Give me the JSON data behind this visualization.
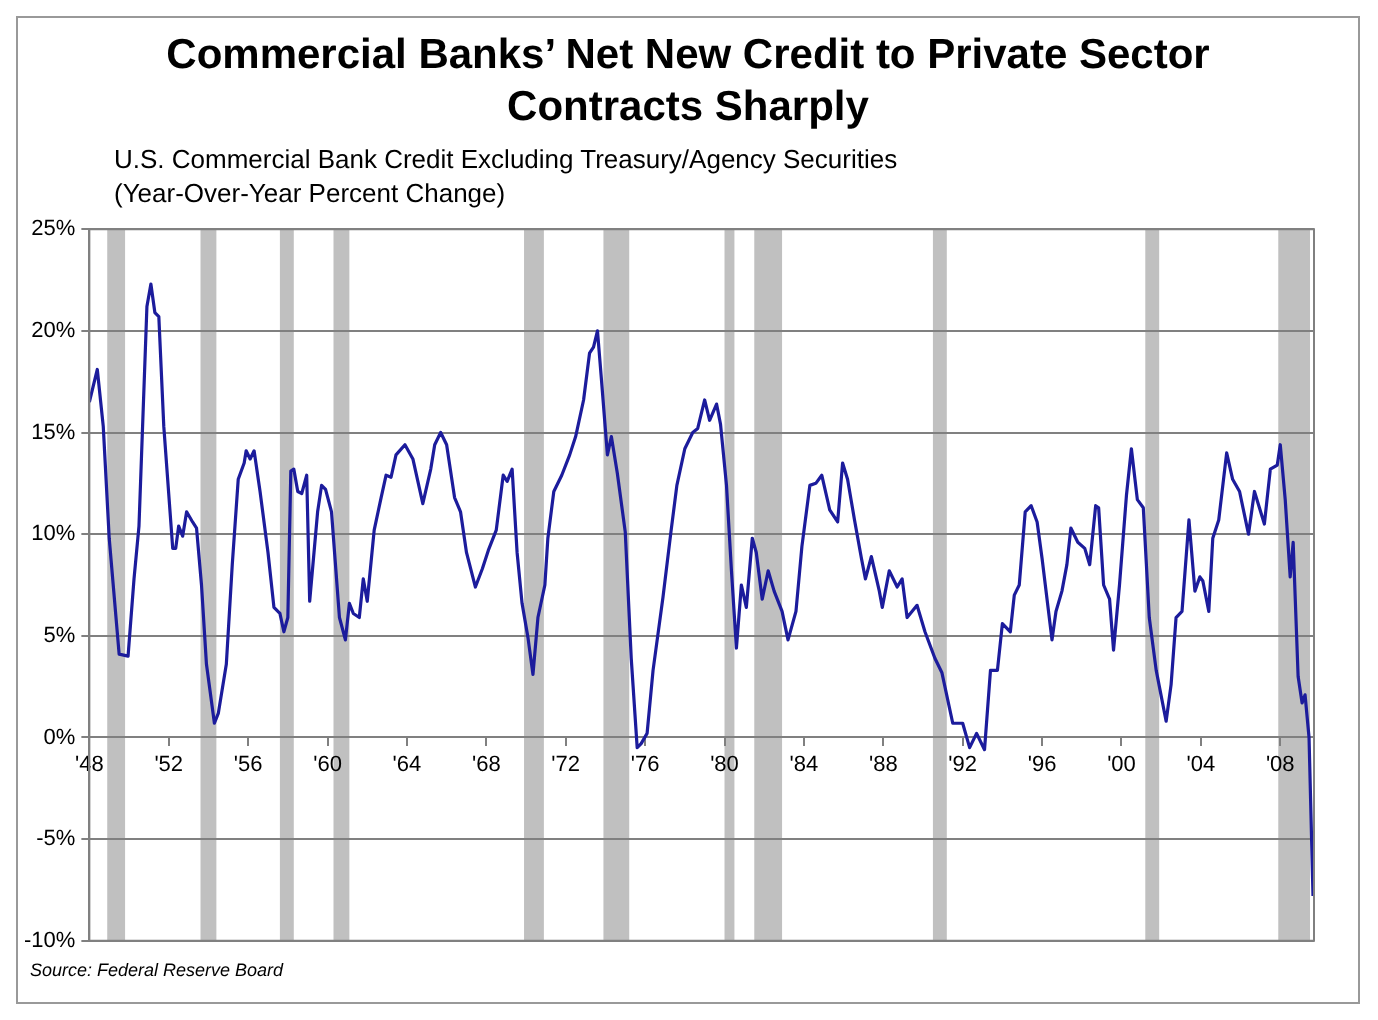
{
  "chart_data": {
    "type": "line",
    "title": "Commercial Banks’ Net New Credit to Private Sector\nContracts Sharply",
    "subtitle": "U.S. Commercial Bank Credit Excluding Treasury/Agency Securities\n(Year-Over-Year Percent Change)",
    "annotations": [
      "Source: Federal Reserve Board"
    ],
    "xlim": [
      1948,
      2009.7
    ],
    "ylim": [
      -10,
      25
    ],
    "xticks": [
      {
        "value": 1948,
        "label": "'48"
      },
      {
        "value": 1952,
        "label": "'52"
      },
      {
        "value": 1956,
        "label": "'56"
      },
      {
        "value": 1960,
        "label": "'60"
      },
      {
        "value": 1964,
        "label": "'64"
      },
      {
        "value": 1968,
        "label": "'68"
      },
      {
        "value": 1972,
        "label": "'72"
      },
      {
        "value": 1976,
        "label": "'76"
      },
      {
        "value": 1980,
        "label": "'80"
      },
      {
        "value": 1984,
        "label": "'84"
      },
      {
        "value": 1988,
        "label": "'88"
      },
      {
        "value": 1992,
        "label": "'92"
      },
      {
        "value": 1996,
        "label": "'96"
      },
      {
        "value": 2000,
        "label": "'00"
      },
      {
        "value": 2004,
        "label": "'04"
      },
      {
        "value": 2008,
        "label": "'08"
      }
    ],
    "yticks": [
      {
        "value": -10,
        "label": "-10%"
      },
      {
        "value": -5,
        "label": "-5%"
      },
      {
        "value": 0,
        "label": "0%"
      },
      {
        "value": 5,
        "label": "5%"
      },
      {
        "value": 10,
        "label": "10%"
      },
      {
        "value": 15,
        "label": "15%"
      },
      {
        "value": 20,
        "label": "20%"
      },
      {
        "value": 25,
        "label": "25%"
      }
    ],
    "grid": "y",
    "bands": [
      {
        "axis": "x",
        "from": 1948.9,
        "to": 1949.8,
        "color": "#c0c0c0"
      },
      {
        "axis": "x",
        "from": 1953.6,
        "to": 1954.4,
        "color": "#c0c0c0"
      },
      {
        "axis": "x",
        "from": 1957.6,
        "to": 1958.3,
        "color": "#c0c0c0"
      },
      {
        "axis": "x",
        "from": 1960.3,
        "to": 1961.1,
        "color": "#c0c0c0"
      },
      {
        "axis": "x",
        "from": 1969.9,
        "to": 1970.9,
        "color": "#c0c0c0"
      },
      {
        "axis": "x",
        "from": 1973.9,
        "to": 1975.2,
        "color": "#c0c0c0"
      },
      {
        "axis": "x",
        "from": 1980.0,
        "to": 1980.5,
        "color": "#c0c0c0"
      },
      {
        "axis": "x",
        "from": 1981.5,
        "to": 1982.9,
        "color": "#c0c0c0"
      },
      {
        "axis": "x",
        "from": 1990.5,
        "to": 1991.2,
        "color": "#c0c0c0"
      },
      {
        "axis": "x",
        "from": 2001.2,
        "to": 2001.9,
        "color": "#c0c0c0"
      },
      {
        "axis": "x",
        "from": 2007.9,
        "to": 2009.5,
        "color": "#c0c0c0"
      }
    ],
    "series": [
      {
        "color": "#1c1c9c",
        "x": [
          1948.0,
          1948.4,
          1948.7,
          1949.0,
          1949.5,
          1949.95,
          1950.25,
          1950.5,
          1950.9,
          1951.1,
          1951.3,
          1951.5,
          1951.75,
          1952.2,
          1952.35,
          1952.5,
          1952.7,
          1952.9,
          1953.2,
          1953.4,
          1953.65,
          1953.9,
          1954.3,
          1954.5,
          1954.9,
          1955.2,
          1955.5,
          1955.8,
          1955.9,
          1956.1,
          1956.3,
          1956.6,
          1957.0,
          1957.3,
          1957.6,
          1957.8,
          1958.0,
          1958.15,
          1958.3,
          1958.5,
          1958.7,
          1958.95,
          1959.1,
          1959.5,
          1959.7,
          1959.9,
          1960.2,
          1960.6,
          1960.9,
          1961.1,
          1961.3,
          1961.6,
          1961.8,
          1962.0,
          1962.35,
          1962.7,
          1962.95,
          1963.2,
          1963.45,
          1963.9,
          1964.3,
          1964.8,
          1965.2,
          1965.4,
          1965.7,
          1966.0,
          1966.4,
          1966.7,
          1967.0,
          1967.45,
          1967.8,
          1968.1,
          1968.5,
          1968.85,
          1969.05,
          1969.3,
          1969.55,
          1969.8,
          1970.1,
          1970.35,
          1970.6,
          1970.95,
          1971.1,
          1971.4,
          1971.8,
          1972.2,
          1972.5,
          1972.9,
          1973.2,
          1973.4,
          1973.6,
          1973.8,
          1974.1,
          1974.3,
          1974.6,
          1975.0,
          1975.3,
          1975.6,
          1975.8,
          1976.1,
          1976.4,
          1976.9,
          1977.3,
          1977.6,
          1978.0,
          1978.4,
          1978.65,
          1979.0,
          1979.25,
          1979.6,
          1979.8,
          1980.1,
          1980.35,
          1980.6,
          1980.85,
          1981.1,
          1981.4,
          1981.6,
          1981.9,
          1982.2,
          1982.5,
          1982.9,
          1983.2,
          1983.6,
          1983.9,
          1984.3,
          1984.6,
          1984.9,
          1985.3,
          1985.7,
          1985.95,
          1986.2,
          1986.55,
          1986.9,
          1987.1,
          1987.4,
          1987.8,
          1987.95,
          1988.3,
          1988.7,
          1988.95,
          1989.2,
          1989.7,
          1990.1,
          1990.6,
          1990.95,
          1991.5,
          1992.0,
          1992.35,
          1992.7,
          1993.1,
          1993.4,
          1993.75,
          1994.0,
          1994.4,
          1994.6,
          1994.85,
          1995.15,
          1995.45,
          1995.75,
          1996.0,
          1996.5,
          1996.7,
          1997.0,
          1997.25,
          1997.45,
          1997.8,
          1998.15,
          1998.4,
          1998.7,
          1998.85,
          1999.1,
          1999.4,
          1999.6,
          1999.9,
          2000.25,
          2000.5,
          2000.8,
          2001.1,
          2001.4,
          2001.75,
          2002.25,
          2002.5,
          2002.75,
          2003.05,
          2003.4,
          2003.7,
          2003.95,
          2004.1,
          2004.4,
          2004.6,
          2004.9,
          2005.3,
          2005.6,
          2005.95,
          2006.4,
          2006.7,
          2007.2,
          2007.5,
          2007.85,
          2008.0,
          2008.25,
          2008.5,
          2008.65,
          2008.9,
          2009.1,
          2009.25,
          2009.45,
          2009.65
        ],
        "values": [
          16.5,
          18.1,
          15.3,
          9.8,
          4.1,
          4.0,
          7.8,
          10.4,
          21.2,
          22.3,
          20.9,
          20.7,
          15.3,
          9.3,
          9.3,
          10.4,
          9.9,
          11.1,
          10.6,
          10.3,
          7.5,
          3.6,
          0.7,
          1.2,
          3.6,
          8.5,
          12.7,
          13.5,
          14.1,
          13.7,
          14.1,
          12.1,
          9.1,
          6.4,
          6.1,
          5.2,
          5.9,
          13.1,
          13.2,
          12.1,
          12.0,
          12.9,
          6.7,
          11.1,
          12.4,
          12.2,
          11.1,
          5.9,
          4.8,
          6.6,
          6.1,
          5.9,
          7.8,
          6.7,
          10.2,
          11.8,
          12.9,
          12.8,
          13.9,
          14.4,
          13.7,
          11.5,
          13.2,
          14.4,
          15.0,
          14.4,
          11.8,
          11.1,
          9.1,
          7.4,
          8.3,
          9.2,
          10.2,
          12.9,
          12.6,
          13.2,
          9.1,
          6.6,
          4.9,
          3.1,
          5.9,
          7.5,
          9.8,
          12.1,
          12.9,
          13.9,
          14.8,
          16.6,
          18.9,
          19.2,
          20.0,
          17.6,
          13.9,
          14.8,
          13.0,
          10.1,
          3.9,
          -0.5,
          -0.3,
          0.2,
          3.3,
          6.9,
          10.1,
          12.4,
          14.2,
          15.0,
          15.2,
          16.6,
          15.6,
          16.4,
          15.4,
          12.4,
          8.2,
          4.4,
          7.5,
          6.4,
          9.8,
          9.1,
          6.8,
          8.2,
          7.2,
          6.2,
          4.8,
          6.2,
          9.4,
          12.4,
          12.5,
          12.9,
          11.2,
          10.6,
          13.5,
          12.7,
          10.7,
          8.8,
          7.8,
          8.9,
          7.2,
          6.4,
          8.2,
          7.4,
          7.8,
          5.9,
          6.5,
          5.2,
          3.9,
          3.2,
          0.7,
          0.7,
          -0.5,
          0.2,
          -0.6,
          3.3,
          3.3,
          5.6,
          5.2,
          7.0,
          7.5,
          11.1,
          11.4,
          10.6,
          8.8,
          4.8,
          6.2,
          7.2,
          8.5,
          10.3,
          9.6,
          9.3,
          8.5,
          11.4,
          11.3,
          7.5,
          6.8,
          4.3,
          7.5,
          11.9,
          14.2,
          11.7,
          11.3,
          5.9,
          3.3,
          0.8,
          2.6,
          5.9,
          6.2,
          10.7,
          7.2,
          7.9,
          7.7,
          6.2,
          9.8,
          10.7,
          14.0,
          12.7,
          12.1,
          10.0,
          12.1,
          10.5,
          13.2,
          13.4,
          14.4,
          11.7,
          7.9,
          9.6,
          3.0,
          1.7,
          2.1,
          0.0,
          -7.8
        ]
      }
    ]
  }
}
